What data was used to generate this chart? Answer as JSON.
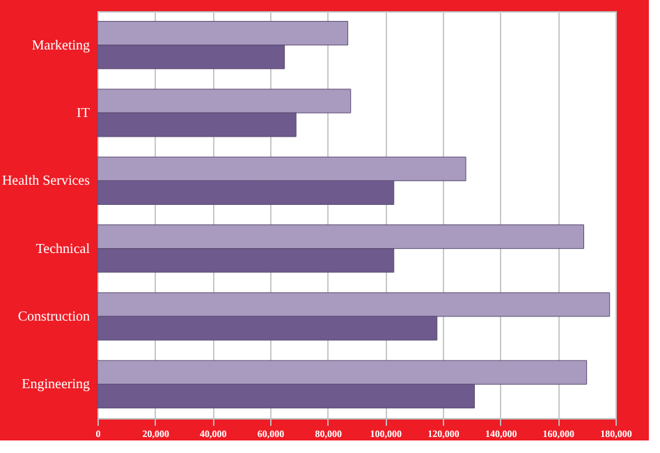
{
  "chart_data": {
    "type": "bar",
    "orientation": "horizontal",
    "categories": [
      "Marketing",
      "IT",
      "Health Services",
      "Technical",
      "Construction",
      "Engineering"
    ],
    "series": [
      {
        "color": "#a89bbf",
        "values": [
          87000,
          88000,
          128000,
          169000,
          178000,
          170000
        ]
      },
      {
        "color": "#6f5a8e",
        "values": [
          65000,
          69000,
          103000,
          103000,
          118000,
          131000
        ]
      }
    ],
    "xlim": [
      0,
      180000
    ],
    "xticks": [
      0,
      {
        "value": 20000,
        "label": "20,000"
      },
      {
        "value": 40000,
        "label": "40,000"
      },
      {
        "value": 60000,
        "label": "60,000"
      },
      {
        "value": 80000,
        "label": "80,000"
      },
      {
        "value": 100000,
        "label": "100,000"
      },
      {
        "value": 120000,
        "label": "120,000"
      },
      {
        "value": 140000,
        "label": "140,000"
      },
      {
        "value": 160000,
        "label": "160,000"
      },
      {
        "value": 180000,
        "label": "180,000"
      }
    ],
    "grid": "x",
    "legend": false
  }
}
